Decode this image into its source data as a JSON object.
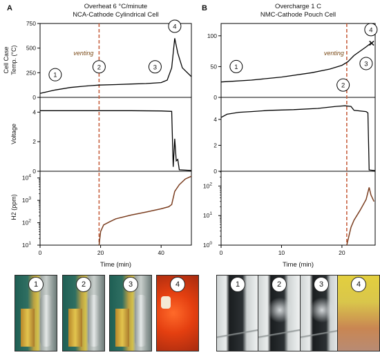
{
  "panels": [
    {
      "letter": "A",
      "title_line1": "Overheat 6 °C/minute",
      "title_line2": "NCA-Cathode Cylindrical Cell",
      "venting_label": "venting",
      "vent_time": 19.5,
      "xlim": [
        0,
        50
      ],
      "xticks": [
        0,
        20,
        40
      ],
      "temp_ylim": [
        0,
        750
      ],
      "temp_yticks": [
        0,
        250,
        500,
        750
      ],
      "volt_ylim": [
        0,
        5
      ],
      "volt_yticks": [
        0,
        2,
        4
      ],
      "h2_ylim_log10": [
        1,
        4.3
      ],
      "h2_yticks_exp": [
        1,
        2,
        3,
        4
      ],
      "stage_markers": [
        {
          "label": "1",
          "x": 5,
          "y": 230
        },
        {
          "label": "2",
          "x": 19.5,
          "y": 310
        },
        {
          "label": "3",
          "x": 38,
          "y": 310
        },
        {
          "label": "4",
          "x": 44.5,
          "y": 740
        }
      ]
    },
    {
      "letter": "B",
      "title_line1": "Overcharge 1 C",
      "title_line2": "NMC-Cathode Pouch Cell",
      "venting_label": "venting",
      "vent_time": 20.8,
      "xlim": [
        0,
        25.5
      ],
      "xticks": [
        0,
        10,
        20
      ],
      "temp_ylim": [
        0,
        120
      ],
      "temp_yticks": [
        0,
        50,
        100
      ],
      "volt_ylim": [
        0,
        5.7
      ],
      "volt_yticks": [
        0,
        2,
        4
      ],
      "h2_ylim_log10": [
        0,
        2.5
      ],
      "h2_yticks_exp": [
        0,
        1,
        2
      ],
      "stage_markers": [
        {
          "label": "1",
          "x": 2.5,
          "y": 50
        },
        {
          "label": "2",
          "x": 20.2,
          "y": 20
        },
        {
          "label": "3",
          "x": 24,
          "y": 55
        },
        {
          "label": "4",
          "x": 24.8,
          "y": 110
        }
      ],
      "failure_marker": "×"
    }
  ],
  "axis_labels": {
    "temp": [
      "Cell Case",
      "Temp. (°C)"
    ],
    "volt": "Voltage",
    "h2": "H2 (ppm)",
    "x": "Time (min)"
  },
  "photos": {
    "nca": [
      "1",
      "2",
      "3",
      "4"
    ],
    "nmc": [
      "1",
      "2",
      "3",
      "4"
    ]
  },
  "chart_data": [
    {
      "type": "line",
      "title": "Overheat 6 °C/minute NCA-Cathode Cylindrical Cell",
      "xlabel": "Time (min)",
      "series": [
        {
          "name": "Cell Case Temp. (°C)",
          "x": [
            0,
            5,
            10,
            15,
            19.5,
            25,
            30,
            35,
            40,
            42,
            43.5,
            44.5,
            45.5,
            47,
            50
          ],
          "y": [
            40,
            75,
            100,
            115,
            125,
            130,
            135,
            140,
            150,
            175,
            300,
            600,
            450,
            300,
            210
          ]
        },
        {
          "name": "Voltage",
          "x": [
            0,
            10,
            20,
            30,
            40,
            43.5,
            44,
            44.5,
            45,
            45.5,
            46,
            50
          ],
          "y": [
            4.1,
            4.1,
            4.1,
            4.1,
            4.08,
            4.05,
            0.3,
            2.2,
            0.7,
            0.8,
            0.1,
            0.05
          ]
        },
        {
          "name": "H2 (ppm)",
          "x": [
            19.5,
            20,
            21,
            23,
            25,
            30,
            35,
            40,
            42.5,
            43.5,
            44.5,
            46,
            48,
            50
          ],
          "y": [
            10,
            40,
            80,
            110,
            150,
            220,
            300,
            420,
            520,
            650,
            2500,
            5000,
            9000,
            12000
          ]
        }
      ]
    },
    {
      "type": "line",
      "title": "Overcharge 1 C NMC-Cathode Pouch Cell",
      "xlabel": "Time (min)",
      "series": [
        {
          "name": "Cell Case Temp. (°C)",
          "x": [
            0,
            5,
            10,
            15,
            18,
            20,
            21,
            22,
            23,
            24,
            24.8
          ],
          "y": [
            25,
            28,
            33,
            40,
            46,
            52,
            58,
            68,
            75,
            82,
            88
          ]
        },
        {
          "name": "Voltage",
          "x": [
            0,
            1,
            3,
            5,
            8,
            12,
            16,
            19,
            20.5,
            21.5,
            22,
            24,
            24.3,
            24.5,
            25.5
          ],
          "y": [
            4.15,
            4.4,
            4.55,
            4.6,
            4.7,
            4.75,
            4.85,
            5.0,
            5.05,
            5.0,
            4.7,
            4.6,
            4.5,
            0.1,
            0.05
          ]
        },
        {
          "name": "H2 (ppm)",
          "x": [
            20.8,
            21.5,
            22,
            23,
            24,
            24.5,
            24.8,
            25.3
          ],
          "y": [
            1,
            4,
            7,
            15,
            35,
            90,
            50,
            30
          ]
        }
      ]
    }
  ]
}
